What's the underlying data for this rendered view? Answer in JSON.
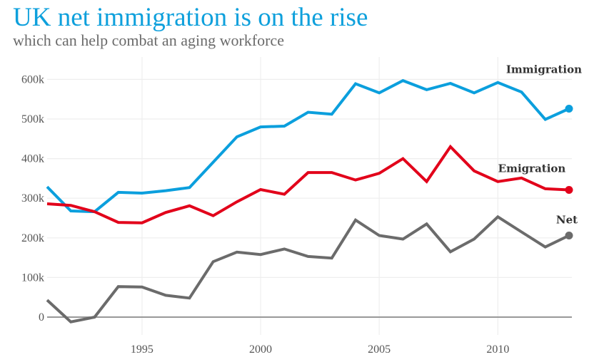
{
  "title": "UK net immigration is on the rise",
  "subtitle": "which can help combat an aging workforce",
  "colors": {
    "title": "#0ea0dc",
    "immigration": "#0b9fdd",
    "emigration": "#e2001a",
    "net": "#6b6b6b",
    "grid": "#eeeeee",
    "zero_line": "#999999"
  },
  "chart_data": {
    "type": "line",
    "title": "UK net immigration is on the rise",
    "subtitle": "which can help combat an aging workforce",
    "xlabel": "",
    "ylabel": "",
    "x": [
      1991,
      1992,
      1993,
      1994,
      1995,
      1996,
      1997,
      1998,
      1999,
      2000,
      2001,
      2002,
      2003,
      2004,
      2005,
      2006,
      2007,
      2008,
      2009,
      2010,
      2011,
      2012,
      2013
    ],
    "xlim": [
      1991,
      2013
    ],
    "ylim": [
      -40000,
      640000
    ],
    "x_ticks": [
      1995,
      2000,
      2005,
      2010
    ],
    "x_tick_labels": [
      "1995",
      "2000",
      "2005",
      "2010"
    ],
    "y_ticks": [
      0,
      100000,
      200000,
      300000,
      400000,
      500000,
      600000
    ],
    "y_tick_labels": [
      "0",
      "100k",
      "200k",
      "300k",
      "400k",
      "500k",
      "600k"
    ],
    "grid": true,
    "legend": "inline labels at line ends (right)",
    "series": [
      {
        "name": "Immigration",
        "key": "immigration",
        "values": [
          329000,
          268000,
          266000,
          315000,
          313000,
          319000,
          327000,
          391000,
          455000,
          480000,
          482000,
          517000,
          512000,
          589000,
          566000,
          597000,
          574000,
          590000,
          566000,
          592000,
          568000,
          499000,
          526000
        ]
      },
      {
        "name": "Emigration",
        "key": "emigration",
        "values": [
          286000,
          282000,
          266000,
          239000,
          238000,
          264000,
          281000,
          256000,
          291000,
          322000,
          310000,
          365000,
          365000,
          346000,
          363000,
          400000,
          342000,
          430000,
          369000,
          342000,
          351000,
          324000,
          321000
        ]
      },
      {
        "name": "Net",
        "key": "net",
        "values": [
          43000,
          -12000,
          0,
          77000,
          76000,
          55000,
          48000,
          140000,
          164000,
          158000,
          172000,
          153000,
          149000,
          245000,
          206000,
          197000,
          235000,
          165000,
          197000,
          253000,
          215000,
          177000,
          206000
        ]
      }
    ]
  }
}
